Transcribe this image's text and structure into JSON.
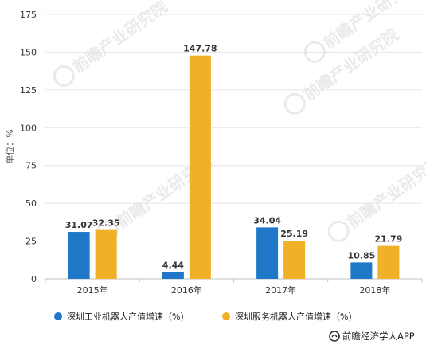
{
  "chart_data": {
    "type": "bar",
    "categories": [
      "2015年",
      "2016年",
      "2017年",
      "2018年"
    ],
    "series": [
      {
        "name": "深圳工业机器人产值增速（%）",
        "values": [
          31.07,
          4.44,
          34.04,
          10.85
        ],
        "color": "#1f77c8"
      },
      {
        "name": "深圳服务机器人产值增速（%）",
        "values": [
          32.35,
          147.78,
          25.19,
          21.79
        ],
        "color": "#f0b027"
      }
    ],
    "ylabel": "单位：%",
    "ylim": [
      0,
      175
    ],
    "yticks": [
      0,
      25,
      50,
      75,
      100,
      125,
      150,
      175
    ],
    "grid": true,
    "legend": "bottom"
  },
  "watermark": {
    "text": "前瞻产业研究院"
  },
  "brand": {
    "text": "前瞻经济学人APP",
    "icon": "qianzhan-logo-icon"
  }
}
